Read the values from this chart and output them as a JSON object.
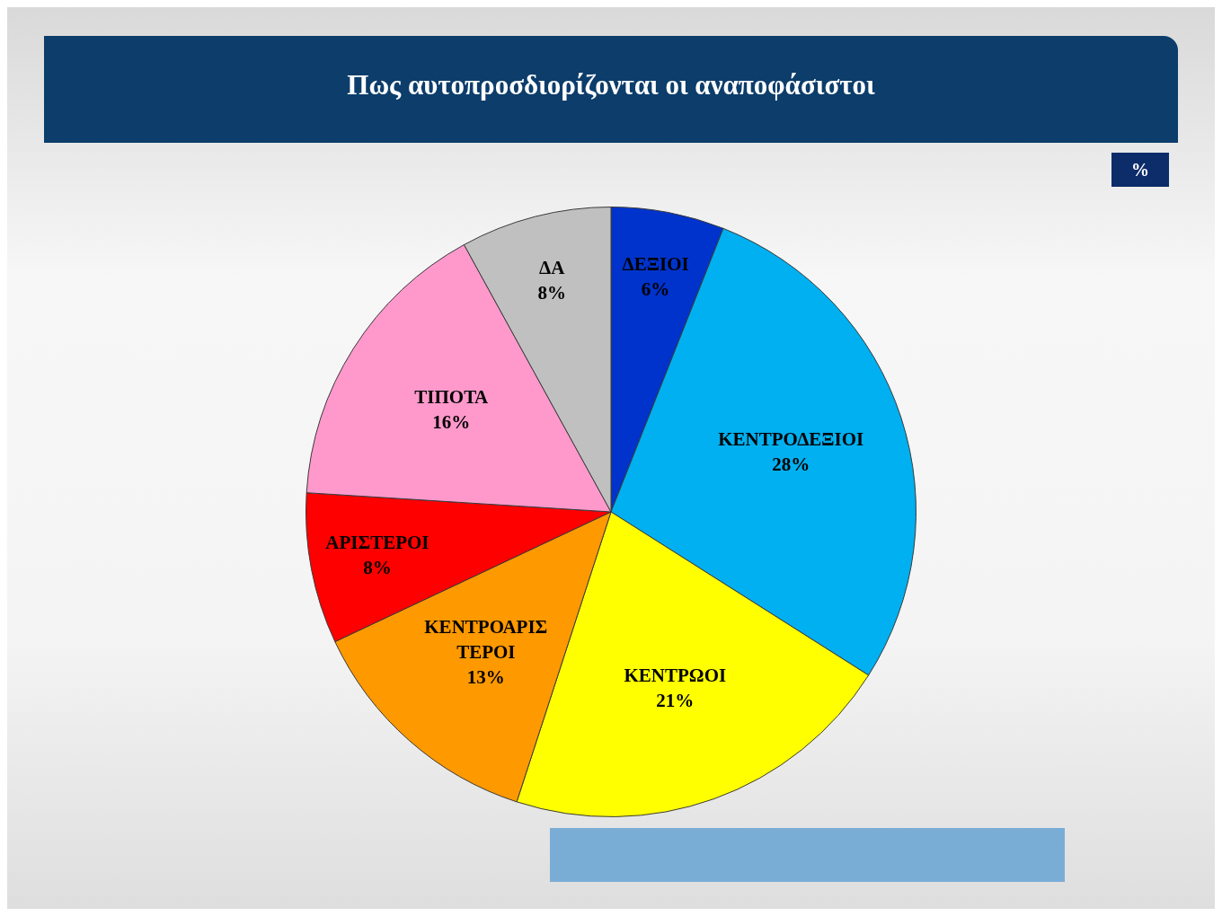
{
  "chart_data": {
    "type": "pie",
    "title": "Πως αυτοπροσδιορίζονται οι αναποφάσιστοι",
    "categories": [
      "ΔΕΞΙΟΙ",
      "ΚΕΝΤΡΟΔΕΞΙΟΙ",
      "ΚΕΝΤΡΩΟΙ",
      "ΚΕΝΤΡΟΑΡΙΣΤΕΡΟΙ",
      "ΑΡΙΣΤΕΡΟΙ",
      "ΤΙΠΟΤΑ",
      "ΔΑ"
    ],
    "values": [
      6,
      28,
      21,
      13,
      8,
      16,
      8
    ],
    "colors": [
      "#0033cc",
      "#00b0f0",
      "#ffff00",
      "#ff9900",
      "#ff0000",
      "#ff99cc",
      "#c0c0c0"
    ],
    "value_labels": [
      "6%",
      "28%",
      "21%",
      "13%",
      "8%",
      "16%",
      "8%"
    ],
    "annotations": [
      "%"
    ]
  }
}
